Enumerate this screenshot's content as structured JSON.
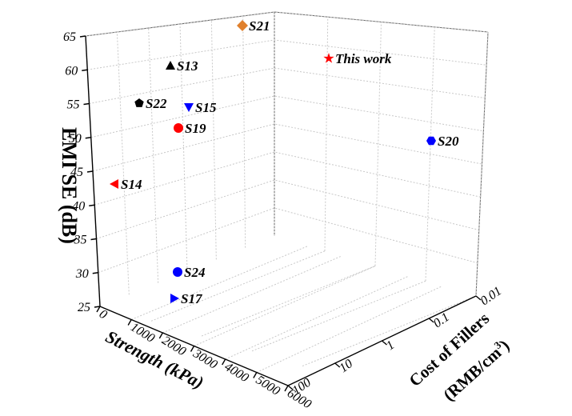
{
  "chart_data": {
    "type": "scatter",
    "title": "",
    "zlabel": "EMI SE (dB)",
    "xlabel": "Strength (kPa)",
    "ylabel_line1": "Cost of Fillers",
    "ylabel_line2_prefix": "(RMB/cm",
    "ylabel_line2_sup": "3",
    "ylabel_line2_suffix": ")",
    "z_ticks": [
      "25",
      "30",
      "35",
      "40",
      "45",
      "50",
      "55",
      "60",
      "65"
    ],
    "x_ticks": [
      "0",
      "1000",
      "2000",
      "3000",
      "4000",
      "5000",
      "6000"
    ],
    "y_ticks": [
      "100",
      "10",
      "1",
      "0.1",
      "0.01"
    ],
    "grid": true,
    "points": [
      {
        "label": "S21",
        "marker": "diamond",
        "color": "#e0802c"
      },
      {
        "label": "This work",
        "marker": "star",
        "color": "#ff0000"
      },
      {
        "label": "S13",
        "marker": "triangle-up",
        "color": "#000000"
      },
      {
        "label": "S22",
        "marker": "pentagon",
        "color": "#000000"
      },
      {
        "label": "S15",
        "marker": "triangle-down",
        "color": "#0000ff"
      },
      {
        "label": "S19",
        "marker": "circle",
        "color": "#ff0000"
      },
      {
        "label": "S20",
        "marker": "hexagon",
        "color": "#0000ff"
      },
      {
        "label": "S14",
        "marker": "triangle-left",
        "color": "#ff0000"
      },
      {
        "label": "S24",
        "marker": "circle",
        "color": "#0000ff"
      },
      {
        "label": "S17",
        "marker": "triangle-right",
        "color": "#0000ff"
      }
    ]
  }
}
